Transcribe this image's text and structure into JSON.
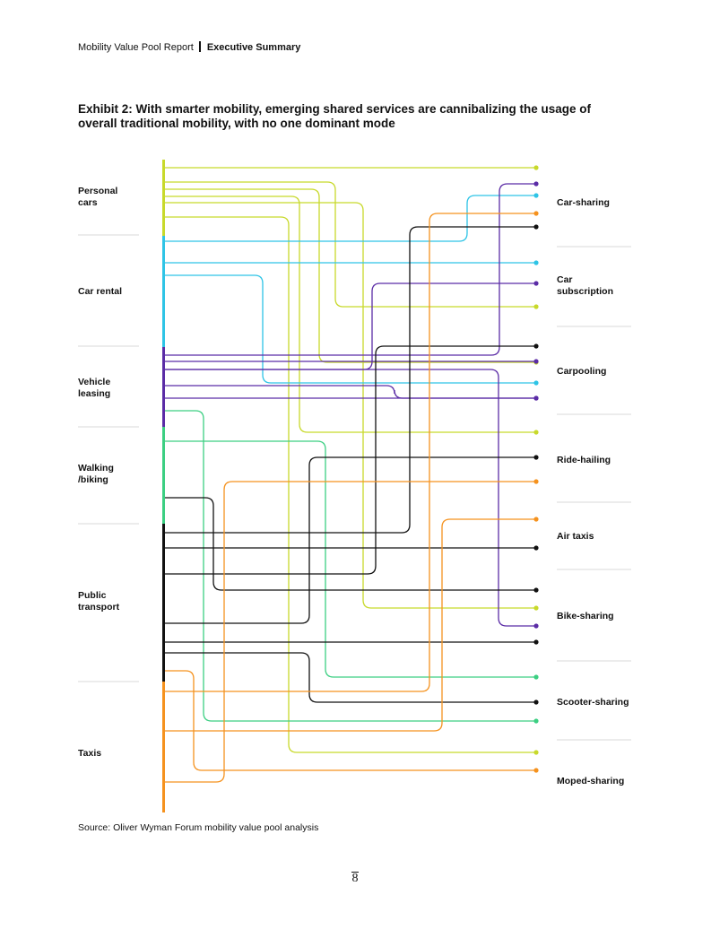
{
  "header": {
    "report": "Mobility Value Pool Report",
    "section": "Executive Summary"
  },
  "title": "Exhibit 2: With smarter mobility, emerging shared services are cannibalizing the usage of overall traditional mobility, with no one dominant mode",
  "source": "Source: Oliver Wyman Forum mobility value pool analysis",
  "page_number": "8",
  "colors": {
    "personal_cars": "#c8d92b",
    "car_rental": "#2ec4e6",
    "vehicle_leasing": "#5b2ca6",
    "walking_biking": "#3ccf82",
    "public_transport": "#111111",
    "taxis": "#f5921e"
  },
  "traditional_modes": [
    {
      "id": "personal_cars",
      "label": "Personal\ncars"
    },
    {
      "id": "car_rental",
      "label": "Car rental"
    },
    {
      "id": "vehicle_leasing",
      "label": "Vehicle\nleasing"
    },
    {
      "id": "walking_biking",
      "label": "Walking\n/biking"
    },
    {
      "id": "public_transport",
      "label": "Public\ntransport"
    },
    {
      "id": "taxis",
      "label": "Taxis"
    }
  ],
  "shared_services": [
    {
      "id": "car_sharing",
      "label": "Car-sharing"
    },
    {
      "id": "car_subscription",
      "label": "Car\nsubscription"
    },
    {
      "id": "carpooling",
      "label": "Carpooling"
    },
    {
      "id": "ride_hailing",
      "label": "Ride-hailing"
    },
    {
      "id": "air_taxis",
      "label": "Air taxis"
    },
    {
      "id": "bike_sharing",
      "label": "Bike-sharing"
    },
    {
      "id": "scooter_sharing",
      "label": "Scooter-sharing"
    },
    {
      "id": "moped_sharing",
      "label": "Moped-sharing"
    }
  ],
  "flows": [
    {
      "from": "personal_cars",
      "to": "car_sharing"
    },
    {
      "from": "personal_cars",
      "to": "car_subscription"
    },
    {
      "from": "personal_cars",
      "to": "carpooling"
    },
    {
      "from": "personal_cars",
      "to": "ride_hailing"
    },
    {
      "from": "personal_cars",
      "to": "bike_sharing"
    },
    {
      "from": "personal_cars",
      "to": "moped_sharing"
    },
    {
      "from": "car_rental",
      "to": "car_sharing"
    },
    {
      "from": "car_rental",
      "to": "car_subscription"
    },
    {
      "from": "car_rental",
      "to": "carpooling"
    },
    {
      "from": "vehicle_leasing",
      "to": "car_sharing"
    },
    {
      "from": "vehicle_leasing",
      "to": "car_subscription"
    },
    {
      "from": "vehicle_leasing",
      "to": "carpooling"
    },
    {
      "from": "vehicle_leasing",
      "to": "bike_sharing"
    },
    {
      "from": "vehicle_leasing",
      "to": "scooter_sharing"
    },
    {
      "from": "vehicle_leasing",
      "to": "moped_sharing"
    },
    {
      "from": "walking_biking",
      "to": "bike_sharing"
    },
    {
      "from": "walking_biking",
      "to": "scooter_sharing"
    },
    {
      "from": "public_transport",
      "to": "car_sharing"
    },
    {
      "from": "public_transport",
      "to": "carpooling"
    },
    {
      "from": "public_transport",
      "to": "ride_hailing"
    },
    {
      "from": "public_transport",
      "to": "air_taxis"
    },
    {
      "from": "public_transport",
      "to": "bike_sharing"
    },
    {
      "from": "public_transport",
      "to": "scooter_sharing"
    },
    {
      "from": "public_transport",
      "to": "moped_sharing"
    },
    {
      "from": "taxis",
      "to": "car_sharing"
    },
    {
      "from": "taxis",
      "to": "ride_hailing"
    },
    {
      "from": "taxis",
      "to": "air_taxis"
    },
    {
      "from": "taxis",
      "to": "moped_sharing"
    }
  ]
}
